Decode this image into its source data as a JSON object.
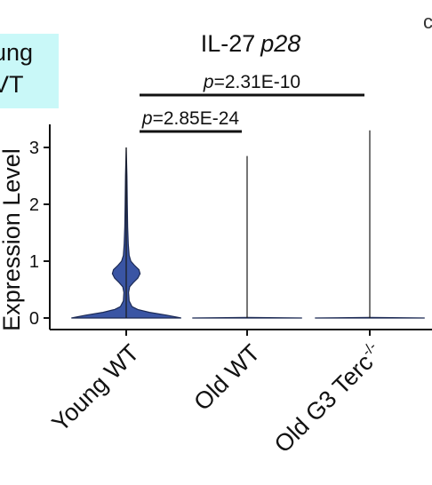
{
  "chart_data": {
    "type": "violin",
    "title": "IL-27",
    "title_italic": "p28",
    "ylabel": "Expression Level",
    "xlabel": "",
    "ylim": [
      -0.15,
      3.35
    ],
    "yticks": [
      0,
      1,
      2,
      3
    ],
    "categories": [
      "Young WT",
      "Old WT",
      "Old G3 Terc"
    ],
    "category_superscripts": [
      "",
      "",
      "-/-"
    ],
    "series": [
      {
        "category": "Young WT",
        "fill": "#3a55a4",
        "max": 3.0,
        "profile": [
          [
            0.0,
            0.95
          ],
          [
            0.05,
            0.7
          ],
          [
            0.1,
            0.4
          ],
          [
            0.15,
            0.2
          ],
          [
            0.2,
            0.1
          ],
          [
            0.3,
            0.05
          ],
          [
            0.45,
            0.04
          ],
          [
            0.55,
            0.06
          ],
          [
            0.62,
            0.12
          ],
          [
            0.7,
            0.2
          ],
          [
            0.78,
            0.24
          ],
          [
            0.85,
            0.22
          ],
          [
            0.93,
            0.14
          ],
          [
            1.0,
            0.08
          ],
          [
            1.1,
            0.05
          ],
          [
            1.3,
            0.035
          ],
          [
            1.6,
            0.025
          ],
          [
            2.0,
            0.018
          ],
          [
            2.5,
            0.012
          ],
          [
            3.0,
            0.0
          ]
        ]
      },
      {
        "category": "Old WT",
        "fill": "#3a55a4",
        "max": 2.85,
        "profile": [
          [
            0.0,
            0.95
          ],
          [
            0.01,
            0.0
          ]
        ]
      },
      {
        "category": "Old G3 Terc",
        "fill": "#3a55a4",
        "max": 3.3,
        "profile": [
          [
            0.0,
            0.95
          ],
          [
            0.01,
            0.0
          ]
        ]
      }
    ],
    "comparisons": [
      {
        "from": "Young WT",
        "to": "Old WT",
        "label_p": "p",
        "label_value": "=2.85E-24"
      },
      {
        "from": "Young WT",
        "to": "Old G3 Terc",
        "label_p": "p",
        "label_value": "=2.31E-10"
      }
    ],
    "legend": [
      "ung",
      "VT"
    ]
  },
  "colors": {
    "violin": "#3a55a4",
    "legend_bg": "#c9f8f8",
    "axis": "#111111"
  },
  "corner_mark": "c"
}
